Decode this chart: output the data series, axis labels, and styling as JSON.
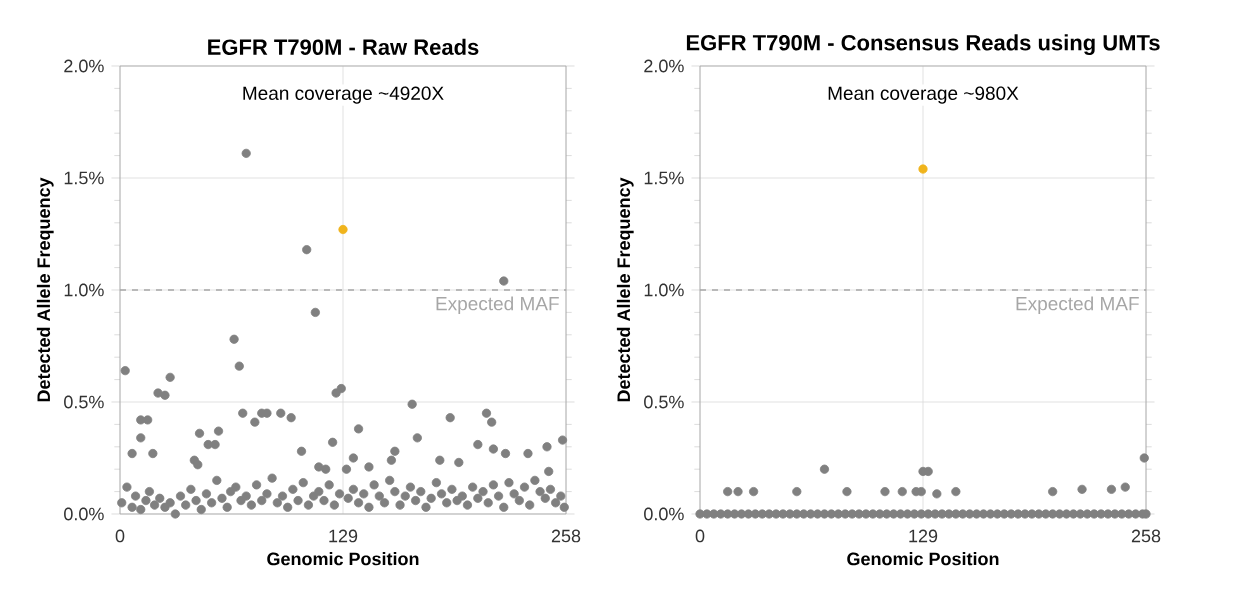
{
  "chart_data": [
    {
      "type": "scatter",
      "title": "EGFR T790M - Raw Reads",
      "xlabel": "Genomic Position",
      "ylabel": "Detected Allele Frequency",
      "xlim": [
        0,
        258
      ],
      "xticks": [
        0,
        129,
        258
      ],
      "ylim": [
        0,
        2.0
      ],
      "yticks": [
        {
          "value": 0,
          "label": "0.0%"
        },
        {
          "value": 0.5,
          "label": "0.5%"
        },
        {
          "value": 1.0,
          "label": "1.0%"
        },
        {
          "value": 1.5,
          "label": "1.5%"
        },
        {
          "value": 2.0,
          "label": "2.0%"
        }
      ],
      "grid": true,
      "marker": "circle",
      "annotations": [
        "Mean coverage ~4920X"
      ],
      "ref_lines": [
        {
          "axis": "y",
          "value": 1.0,
          "label": "Expected MAF",
          "color": "#a6a6a6",
          "line_style": "dashed"
        }
      ],
      "series": [
        {
          "color": "#808080",
          "x": [
            1,
            4,
            7,
            9,
            12,
            15,
            17,
            20,
            23,
            26,
            29,
            32,
            35,
            38,
            41,
            44,
            47,
            50,
            53,
            56,
            59,
            62,
            64,
            67,
            70,
            73,
            76,
            79,
            82,
            85,
            88,
            91,
            94,
            97,
            100,
            103,
            106,
            109,
            112,
            115,
            118,
            121,
            124,
            127,
            132,
            135,
            138,
            141,
            144,
            147,
            150,
            153,
            156,
            159,
            162,
            165,
            168,
            171,
            174,
            177,
            180,
            183,
            186,
            189,
            192,
            195,
            198,
            201,
            204,
            207,
            210,
            213,
            216,
            219,
            222,
            225,
            228,
            231,
            234,
            237,
            240,
            243,
            246,
            249,
            252,
            255,
            257,
            3,
            7,
            12,
            12,
            16,
            19,
            22,
            26,
            29,
            43,
            45,
            46,
            51,
            55,
            57,
            66,
            69,
            73,
            71,
            78,
            82,
            85,
            93,
            99,
            105,
            108,
            113,
            115,
            119,
            123,
            125,
            128,
            131,
            135,
            138,
            144,
            157,
            159,
            169,
            172,
            185,
            191,
            196,
            207,
            212,
            215,
            216,
            222,
            223,
            236,
            247,
            248,
            256
          ],
          "values": [
            0.05,
            0.12,
            0.03,
            0.08,
            0.02,
            0.06,
            0.1,
            0.04,
            0.07,
            0.03,
            0.05,
            0.0,
            0.08,
            0.04,
            0.11,
            0.06,
            0.02,
            0.09,
            0.05,
            0.15,
            0.07,
            0.03,
            0.1,
            0.12,
            0.06,
            0.08,
            0.04,
            0.13,
            0.06,
            0.09,
            0.16,
            0.05,
            0.08,
            0.03,
            0.11,
            0.06,
            0.14,
            0.04,
            0.08,
            0.1,
            0.06,
            0.13,
            0.04,
            0.09,
            0.07,
            0.11,
            0.05,
            0.09,
            0.03,
            0.13,
            0.08,
            0.05,
            0.15,
            0.1,
            0.04,
            0.08,
            0.12,
            0.06,
            0.1,
            0.03,
            0.07,
            0.14,
            0.09,
            0.05,
            0.11,
            0.06,
            0.08,
            0.04,
            0.12,
            0.07,
            0.1,
            0.05,
            0.13,
            0.08,
            0.03,
            0.14,
            0.09,
            0.06,
            0.12,
            0.04,
            0.15,
            0.1,
            0.07,
            0.11,
            0.05,
            0.08,
            0.03,
            0.64,
            0.27,
            0.34,
            0.42,
            0.42,
            0.27,
            0.54,
            0.53,
            0.61,
            0.24,
            0.22,
            0.36,
            0.31,
            0.31,
            0.37,
            0.78,
            0.66,
            1.61,
            0.45,
            0.41,
            0.45,
            0.45,
            0.45,
            0.43,
            0.28,
            1.18,
            0.9,
            0.21,
            0.2,
            0.32,
            0.54,
            0.56,
            0.2,
            0.25,
            0.38,
            0.21,
            0.24,
            0.28,
            0.49,
            0.34,
            0.24,
            0.43,
            0.23,
            0.31,
            0.45,
            0.41,
            0.29,
            1.04,
            0.27,
            0.27,
            0.3,
            0.19,
            0.33
          ]
        },
        {
          "color": "#f0b41c",
          "x": [
            129
          ],
          "values": [
            1.27
          ]
        }
      ]
    },
    {
      "type": "scatter",
      "title": "EGFR T790M - Consensus Reads using UMTs",
      "xlabel": "Genomic Position",
      "ylabel": "Detected Allele Frequency",
      "xlim": [
        0,
        258
      ],
      "xticks": [
        0,
        129,
        258
      ],
      "ylim": [
        0,
        2.0
      ],
      "yticks": [
        {
          "value": 0,
          "label": "0.0%"
        },
        {
          "value": 0.5,
          "label": "0.5%"
        },
        {
          "value": 1.0,
          "label": "1.0%"
        },
        {
          "value": 1.5,
          "label": "1.5%"
        },
        {
          "value": 2.0,
          "label": "2.0%"
        }
      ],
      "grid": true,
      "marker": "circle",
      "annotations": [
        "Mean coverage ~980X"
      ],
      "ref_lines": [
        {
          "axis": "y",
          "value": 1.0,
          "label": "Expected MAF",
          "color": "#a6a6a6",
          "line_style": "dashed"
        }
      ],
      "series": [
        {
          "color": "#808080",
          "x": [
            0,
            4,
            8,
            12,
            16,
            20,
            24,
            28,
            32,
            36,
            40,
            44,
            48,
            52,
            56,
            60,
            64,
            68,
            72,
            76,
            80,
            84,
            88,
            92,
            96,
            100,
            104,
            108,
            112,
            116,
            120,
            124,
            128,
            132,
            136,
            140,
            144,
            148,
            152,
            156,
            160,
            164,
            168,
            172,
            176,
            180,
            184,
            188,
            192,
            196,
            200,
            204,
            208,
            212,
            216,
            220,
            224,
            228,
            232,
            236,
            240,
            244,
            248,
            252,
            256,
            258,
            16,
            22,
            31,
            56,
            72,
            85,
            107,
            117,
            125,
            128,
            129,
            132,
            137,
            148,
            204,
            221,
            238,
            246,
            257
          ],
          "values": [
            0,
            0,
            0,
            0,
            0,
            0,
            0,
            0,
            0,
            0,
            0,
            0,
            0,
            0,
            0,
            0,
            0,
            0,
            0,
            0,
            0,
            0,
            0,
            0,
            0,
            0,
            0,
            0,
            0,
            0,
            0,
            0,
            0,
            0,
            0,
            0,
            0,
            0,
            0,
            0,
            0,
            0,
            0,
            0,
            0,
            0,
            0,
            0,
            0,
            0,
            0,
            0,
            0,
            0,
            0,
            0,
            0,
            0,
            0,
            0,
            0,
            0,
            0,
            0,
            0,
            0,
            0.1,
            0.1,
            0.1,
            0.1,
            0.2,
            0.1,
            0.1,
            0.1,
            0.1,
            0.1,
            0.19,
            0.19,
            0.09,
            0.1,
            0.1,
            0.11,
            0.11,
            0.12,
            0.25
          ]
        },
        {
          "color": "#f0b41c",
          "x": [
            129
          ],
          "values": [
            1.54
          ]
        }
      ]
    }
  ]
}
